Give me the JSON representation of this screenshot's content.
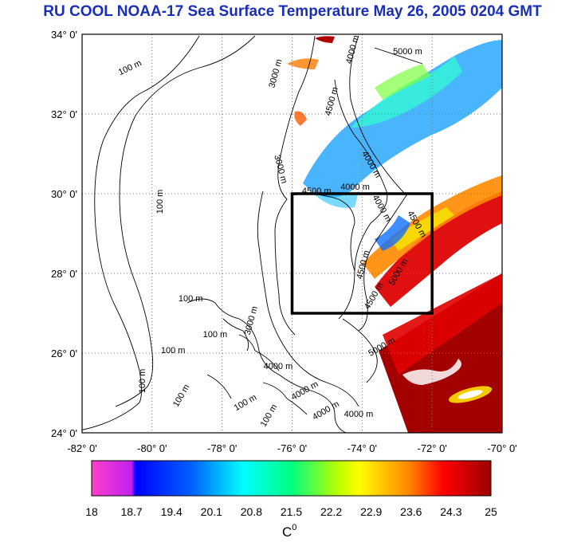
{
  "title": "RU COOL  NOAA-17 Sea Surface Temperature May 26, 2005 0204 GMT",
  "map": {
    "lon_range": [
      -82,
      -70
    ],
    "lat_range": [
      24,
      34
    ],
    "lat_ticks": [
      "24° 0'",
      "26° 0'",
      "28° 0'",
      "30° 0'",
      "32° 0'",
      "34° 0'"
    ],
    "lon_ticks": [
      "-82° 0'",
      "-80° 0'",
      "-78° 0'",
      "-76° 0'",
      "-74° 0'",
      "-72° 0'",
      "-70° 0'"
    ],
    "study_box": {
      "lon": [
        -76,
        -72
      ],
      "lat": [
        27,
        30
      ]
    },
    "contour_labels": [
      {
        "text": "100 m",
        "lon": -80.6,
        "lat": 33.1,
        "rot": -25
      },
      {
        "text": "3000 m",
        "lon": -76.4,
        "lat": 33.0,
        "rot": -75
      },
      {
        "text": "4000 m",
        "lon": -74.2,
        "lat": 33.6,
        "rot": -75
      },
      {
        "text": "5000 m",
        "lon": -72.7,
        "lat": 33.5,
        "rot": 0
      },
      {
        "text": "4500 m",
        "lon": -74.8,
        "lat": 32.3,
        "rot": -75
      },
      {
        "text": "4000 m",
        "lon": -73.8,
        "lat": 30.7,
        "rot": 60
      },
      {
        "text": "3000 m",
        "lon": -76.4,
        "lat": 30.6,
        "rot": 75
      },
      {
        "text": "4500 m",
        "lon": -75.3,
        "lat": 30.0,
        "rot": 0
      },
      {
        "text": "4000 m",
        "lon": -74.2,
        "lat": 30.1,
        "rot": 0
      },
      {
        "text": "4000 m",
        "lon": -73.5,
        "lat": 29.6,
        "rot": 60
      },
      {
        "text": "100 m",
        "lon": -79.7,
        "lat": 29.8,
        "rot": -90
      },
      {
        "text": "4500 m",
        "lon": -72.5,
        "lat": 29.2,
        "rot": 60
      },
      {
        "text": "4500 m",
        "lon": -73.9,
        "lat": 28.2,
        "rot": -75
      },
      {
        "text": "5000 m",
        "lon": -72.9,
        "lat": 28.0,
        "rot": -60
      },
      {
        "text": "4500 m",
        "lon": -73.6,
        "lat": 27.4,
        "rot": -60
      },
      {
        "text": "100 m",
        "lon": -78.9,
        "lat": 27.3,
        "rot": 0
      },
      {
        "text": "100 m",
        "lon": -78.2,
        "lat": 26.4,
        "rot": 0
      },
      {
        "text": "100 m",
        "lon": -79.4,
        "lat": 26.0,
        "rot": 0
      },
      {
        "text": "3000 m",
        "lon": -77.1,
        "lat": 26.8,
        "rot": -75
      },
      {
        "text": "5000 m",
        "lon": -73.4,
        "lat": 26.1,
        "rot": -30
      },
      {
        "text": "100 m",
        "lon": -80.2,
        "lat": 25.3,
        "rot": -90
      },
      {
        "text": "4000 m",
        "lon": -76.4,
        "lat": 25.6,
        "rot": 0
      },
      {
        "text": "4000 m",
        "lon": -75.6,
        "lat": 25.0,
        "rot": -30
      },
      {
        "text": "100 m",
        "lon": -79.1,
        "lat": 24.9,
        "rot": -60
      },
      {
        "text": "100 m",
        "lon": -77.3,
        "lat": 24.7,
        "rot": -30
      },
      {
        "text": "100 m",
        "lon": -76.6,
        "lat": 24.4,
        "rot": -60
      },
      {
        "text": "4000 m",
        "lon": -75.0,
        "lat": 24.5,
        "rot": -30
      },
      {
        "text": "4000 m",
        "lon": -74.1,
        "lat": 24.4,
        "rot": 0
      }
    ]
  },
  "colorbar": {
    "min": 18,
    "max": 25,
    "tick_labels": [
      "18",
      "18.7",
      "19.4",
      "20.1",
      "20.8",
      "21.5",
      "22.2",
      "22.9",
      "23.6",
      "24.3",
      "25"
    ],
    "unit_label": "C",
    "unit_superscript": "0",
    "colors": [
      "#ff40c8",
      "#c020f0",
      "#0000ff",
      "#00a0ff",
      "#00ffff",
      "#00ff80",
      "#a0ff00",
      "#ffff00",
      "#ff9000",
      "#ff0000",
      "#a00000"
    ]
  },
  "colors": {
    "title": "#1a2fb8",
    "frame": "#000000",
    "grid": "#777777",
    "land": "#ffffff"
  }
}
